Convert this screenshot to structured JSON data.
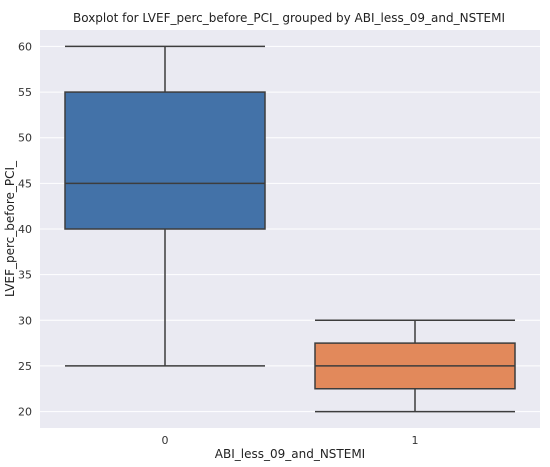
{
  "chart_data": {
    "type": "boxplot",
    "title": "Boxplot for LVEF_perc_before_PCI_ grouped by ABI_less_09_and_NSTEMI",
    "xlabel": "ABI_less_09_and_NSTEMI",
    "ylabel": "LVEF_perc_before_PCI_",
    "ylim": [
      18.2,
      61.8
    ],
    "yticks": [
      20,
      25,
      30,
      35,
      40,
      45,
      50,
      55,
      60
    ],
    "grid": true,
    "categories": [
      "0",
      "1"
    ],
    "boxes": [
      {
        "category": "0",
        "whisker_low": 25,
        "q1": 40,
        "median": 45,
        "q3": 55,
        "whisker_high": 60,
        "color": "#4372a8"
      },
      {
        "category": "1",
        "whisker_low": 20,
        "q1": 22.5,
        "median": 25,
        "q3": 27.5,
        "whisker_high": 30,
        "color": "#e2895b"
      }
    ],
    "colors": {
      "background": "#eaeaf2",
      "grid": "#ffffff",
      "lines": "#3d3d3d"
    }
  }
}
